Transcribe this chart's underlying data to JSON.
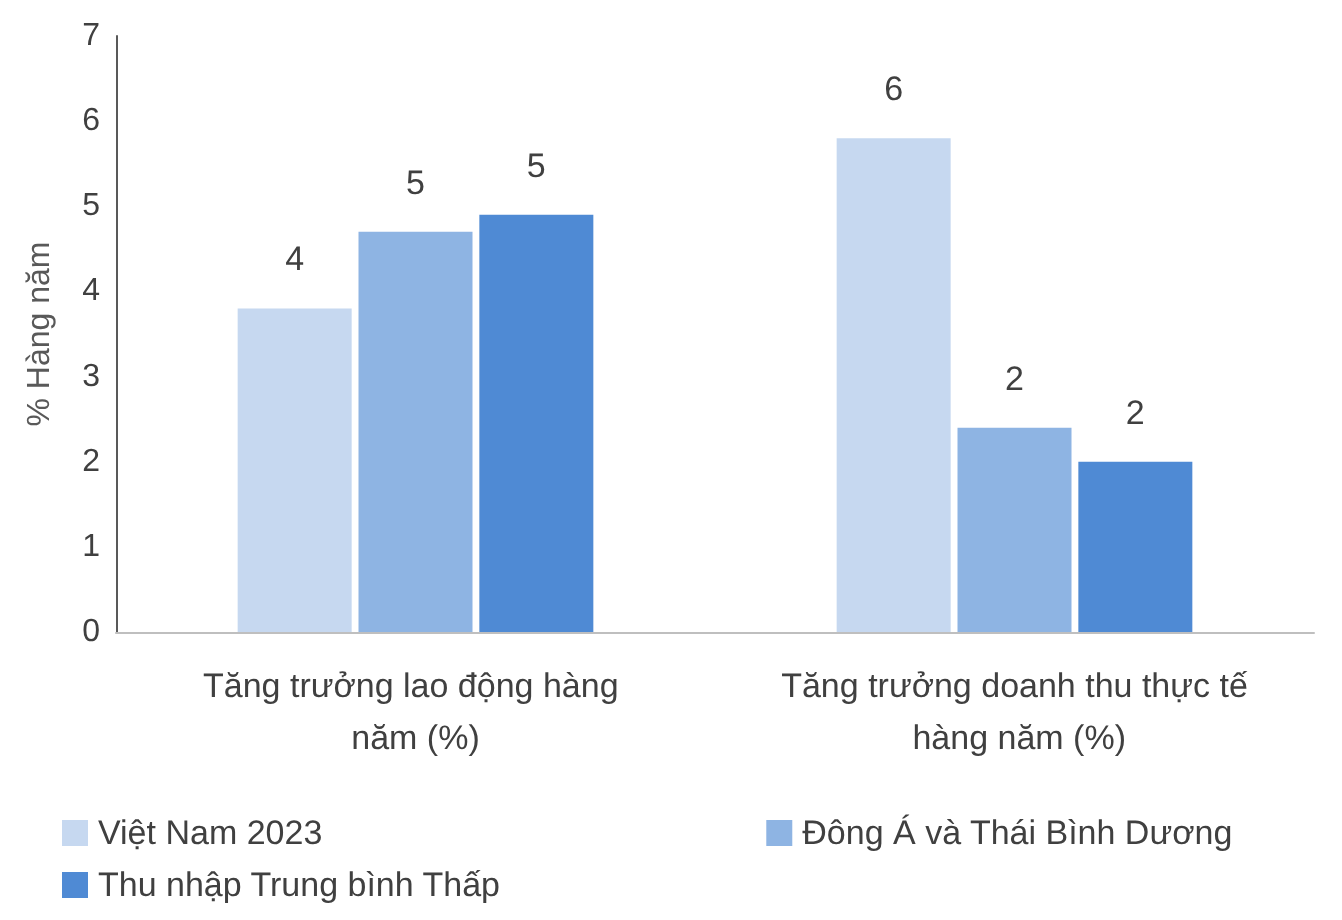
{
  "chart_data": {
    "type": "bar",
    "ylabel": "% Hàng năm",
    "categories": [
      "Tăng trưởng lao động hàng năm (%)",
      "Tăng trưởng doanh thu thực tế hàng năm (%)"
    ],
    "series": [
      {
        "name": "Việt Nam 2023",
        "color": "#c6d8f0",
        "values": [
          3.8,
          5.8
        ],
        "value_labels": [
          "4",
          "6"
        ]
      },
      {
        "name": "Đông Á và Thái Bình Dương",
        "color": "#8eb4e3",
        "values": [
          4.7,
          2.4
        ],
        "value_labels": [
          "5",
          "2"
        ]
      },
      {
        "name": "Thu nhập Trung bình Thấp",
        "color": "#4f8ad4",
        "values": [
          4.9,
          2.0
        ],
        "value_labels": [
          "5",
          "2"
        ]
      }
    ],
    "ylim": [
      0,
      7
    ],
    "yticks": [
      0,
      1,
      2,
      3,
      4,
      5,
      6,
      7
    ],
    "grid": false,
    "legend": "bottom"
  }
}
